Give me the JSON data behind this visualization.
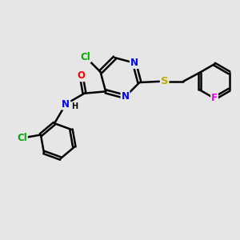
{
  "bg_color": "#e6e6e6",
  "bond_color": "#000000",
  "bond_width": 1.8,
  "atom_colors": {
    "Cl": "#00aa00",
    "N": "#0000ee",
    "O": "#ff0000",
    "S": "#bbaa00",
    "F": "#ee00ee",
    "C": "#000000",
    "H": "#000000"
  },
  "font_size": 8.5,
  "fig_width": 3.0,
  "fig_height": 3.0,
  "dpi": 100
}
